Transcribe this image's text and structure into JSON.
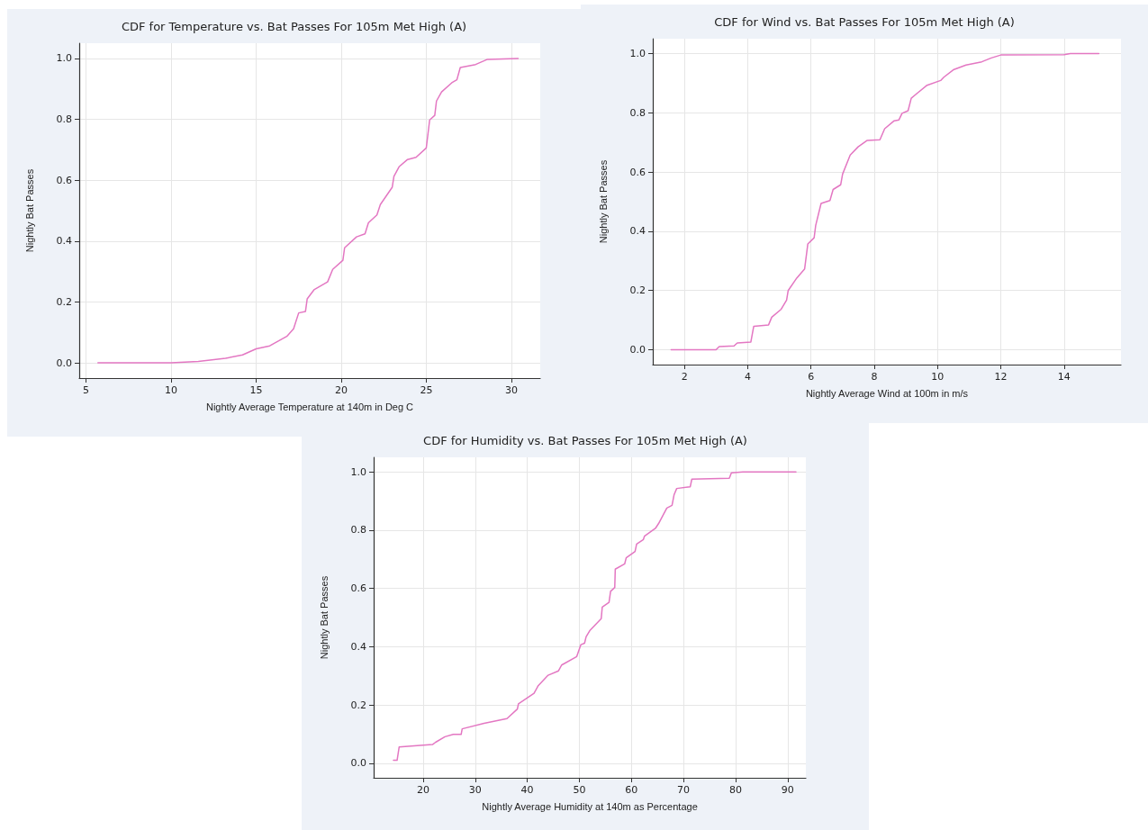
{
  "chart_data": [
    {
      "type": "line",
      "title": "CDF for Temperature vs. Bat Passes For 105m Met High (A)",
      "xlabel": "Nightly Average Temperature at 140m in Deg C",
      "ylabel": "Nightly Bat Passes",
      "marker": "none",
      "line_style": "solid",
      "grid": true,
      "xlim": [
        4.6,
        31.7
      ],
      "xticks": [
        5,
        10,
        15,
        20,
        25,
        30
      ],
      "ylim": [
        -0.05,
        1.05
      ],
      "yticks": [
        {
          "value": 0,
          "label": "0.0"
        },
        {
          "value": 0.2,
          "label": "0.2"
        },
        {
          "value": 0.4,
          "label": "0.4"
        },
        {
          "value": 0.6,
          "label": "0.6"
        },
        {
          "value": 0.8,
          "label": "0.8"
        },
        {
          "value": 1,
          "label": "1.0"
        }
      ],
      "series": [
        {
          "color": "#e377c2",
          "x": [
            5.7,
            10,
            11.6,
            13.2,
            14.2,
            15,
            15.8,
            16.8,
            17.2,
            17.5,
            17.9,
            18,
            18.4,
            19.2,
            19.5,
            20.1,
            20.2,
            20.9,
            21.4,
            21.6,
            22.1,
            22.3,
            23,
            23.1,
            23.4,
            23.9,
            24.4,
            25,
            25.2,
            25.5,
            25.6,
            25.9,
            26.5,
            26.8,
            27,
            27.9,
            28.6,
            30.4
          ],
          "values": [
            0,
            0,
            0.005,
            0.015,
            0.026,
            0.046,
            0.056,
            0.087,
            0.112,
            0.164,
            0.169,
            0.21,
            0.24,
            0.266,
            0.307,
            0.337,
            0.378,
            0.414,
            0.424,
            0.46,
            0.486,
            0.52,
            0.577,
            0.613,
            0.644,
            0.668,
            0.675,
            0.706,
            0.798,
            0.813,
            0.86,
            0.89,
            0.92,
            0.93,
            0.97,
            0.98,
            0.997,
            1
          ]
        }
      ]
    },
    {
      "type": "line",
      "title": "CDF for Wind vs. Bat Passes For 105m Met High (A)",
      "xlabel": "Nightly Average Wind at 100m in m/s",
      "ylabel": "Nightly Bat Passes",
      "marker": "none",
      "line_style": "solid",
      "grid": true,
      "xlim": [
        1,
        15.8
      ],
      "xticks": [
        2,
        4,
        6,
        8,
        10,
        12,
        14
      ],
      "ylim": [
        -0.05,
        1.05
      ],
      "yticks": [
        {
          "value": 0,
          "label": "0.0"
        },
        {
          "value": 0.2,
          "label": "0.2"
        },
        {
          "value": 0.4,
          "label": "0.4"
        },
        {
          "value": 0.6,
          "label": "0.6"
        },
        {
          "value": 0.8,
          "label": "0.8"
        },
        {
          "value": 1,
          "label": "1.0"
        }
      ],
      "series": [
        {
          "color": "#e377c2",
          "x": [
            1.58,
            3,
            3.1,
            3.57,
            3.67,
            4.1,
            4.19,
            4.66,
            4.76,
            5.06,
            5.23,
            5.28,
            5.55,
            5.8,
            5.9,
            6.1,
            6.15,
            6.32,
            6.6,
            6.7,
            6.94,
            7,
            7.24,
            7.49,
            7.78,
            8.18,
            8.33,
            8.63,
            8.78,
            8.88,
            9.07,
            9.17,
            9.37,
            9.67,
            10.1,
            10.2,
            10.5,
            10.9,
            11.4,
            11.7,
            12,
            14,
            14.2,
            15.1
          ],
          "values": [
            0,
            0,
            0.011,
            0.013,
            0.023,
            0.026,
            0.079,
            0.084,
            0.11,
            0.137,
            0.168,
            0.2,
            0.242,
            0.273,
            0.357,
            0.378,
            0.42,
            0.494,
            0.504,
            0.541,
            0.557,
            0.593,
            0.657,
            0.685,
            0.707,
            0.709,
            0.746,
            0.773,
            0.776,
            0.798,
            0.807,
            0.849,
            0.867,
            0.893,
            0.909,
            0.92,
            0.945,
            0.961,
            0.972,
            0.985,
            0.995,
            0.996,
            1,
            1
          ]
        }
      ]
    },
    {
      "type": "line",
      "title": "CDF for Humidity vs. Bat Passes For 105m Met High (A)",
      "xlabel": "Nightly Average Humidity at 140m as Percentage",
      "ylabel": "Nightly Bat Passes",
      "marker": "none",
      "line_style": "solid",
      "grid": true,
      "xlim": [
        10.5,
        93.5
      ],
      "xticks": [
        20,
        30,
        40,
        50,
        60,
        70,
        80,
        90
      ],
      "ylim": [
        -0.05,
        1.05
      ],
      "yticks": [
        {
          "value": 0,
          "label": "0.0"
        },
        {
          "value": 0.2,
          "label": "0.2"
        },
        {
          "value": 0.4,
          "label": "0.4"
        },
        {
          "value": 0.6,
          "label": "0.6"
        },
        {
          "value": 0.8,
          "label": "0.8"
        },
        {
          "value": 1,
          "label": "1.0"
        }
      ],
      "series": [
        {
          "color": "#e377c2",
          "x": [
            14.3,
            15,
            15.4,
            21.8,
            22.4,
            24.2,
            25.8,
            27.3,
            27.5,
            31.7,
            36.1,
            38.1,
            38.3,
            41.3,
            42.1,
            44,
            46,
            46.6,
            49.5,
            50.3,
            51,
            51.3,
            52,
            54.2,
            54.4,
            55.7,
            56,
            56.8,
            56.9,
            58.7,
            59,
            60.7,
            61,
            62.3,
            62.5,
            64.6,
            65.2,
            66.8,
            67.8,
            68.2,
            68.7,
            71.3,
            71.6,
            78.8,
            79.2,
            81.4,
            91.6
          ],
          "values": [
            0.01,
            0.01,
            0.056,
            0.064,
            0.072,
            0.091,
            0.099,
            0.099,
            0.118,
            0.137,
            0.153,
            0.186,
            0.204,
            0.24,
            0.266,
            0.302,
            0.317,
            0.337,
            0.366,
            0.407,
            0.412,
            0.434,
            0.455,
            0.496,
            0.536,
            0.552,
            0.59,
            0.603,
            0.666,
            0.684,
            0.705,
            0.727,
            0.752,
            0.768,
            0.779,
            0.806,
            0.822,
            0.876,
            0.885,
            0.922,
            0.943,
            0.949,
            0.975,
            0.978,
            0.997,
            1,
            1
          ]
        }
      ]
    }
  ]
}
